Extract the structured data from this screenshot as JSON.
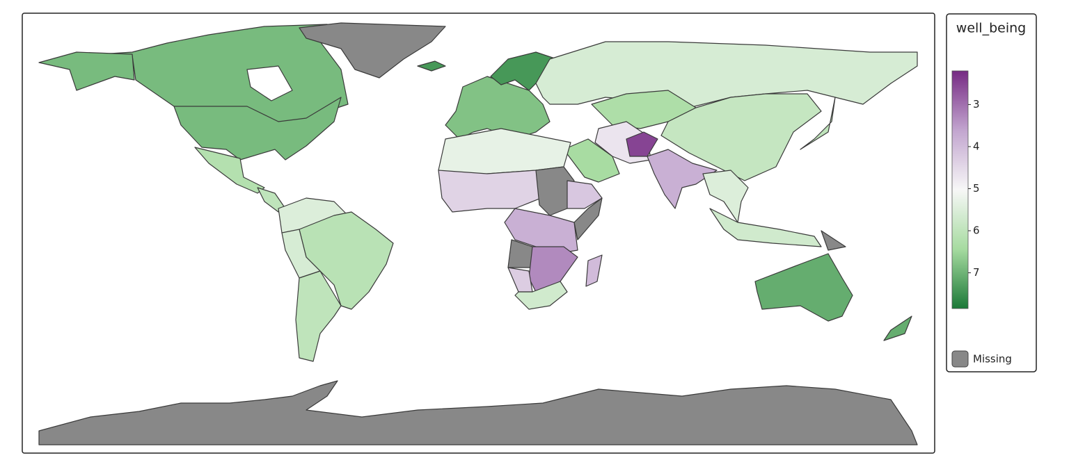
{
  "map": {
    "legend_title": "well_being",
    "scale_lim": [
      2.2,
      7.85
    ],
    "scale_colors": [
      "#762a83",
      "#c2a5cf",
      "#f7f7f7",
      "#a6dba0",
      "#1b7837"
    ],
    "ticks": [
      3,
      4,
      5,
      6,
      7
    ],
    "missing_label": "Missing",
    "missing_color": "#888888",
    "regions": [
      6.9,
      6.9,
      6.9,
      null,
      6.2,
      6.0,
      5.5,
      6.1,
      5.6,
      6.0,
      6.8,
      7.4,
      7.4,
      5.6,
      6.3,
      5.9,
      6.0,
      6.4,
      4.7,
      2.5,
      3.8,
      5.5,
      5.7,
      null,
      5.3,
      4.4,
      null,
      4.2,
      null,
      3.8,
      null,
      3.3,
      4.3,
      5.7,
      4.0,
      7.1,
      7.1,
      null
    ]
  }
}
